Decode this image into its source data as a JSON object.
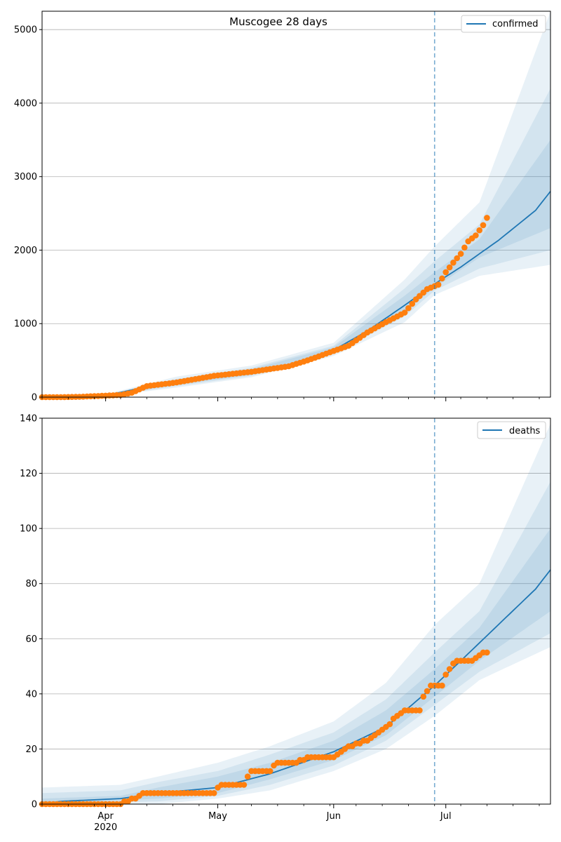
{
  "chart_data": [
    {
      "type": "line",
      "title": "Muscogee 28 days",
      "legend": {
        "label": "confirmed",
        "placement": "top-right"
      },
      "ylim": [
        0,
        5250
      ],
      "yticks": [
        0,
        1000,
        2000,
        3000,
        4000,
        5000
      ],
      "grid": "horizontal",
      "forecast_start": "2020-06-28",
      "series": [
        {
          "name": "confirmed",
          "kind": "model-median",
          "color": "#1f77b4",
          "points": [
            [
              "2020-03-15",
              0
            ],
            [
              "2020-04-01",
              20
            ],
            [
              "2020-04-10",
              120
            ],
            [
              "2020-04-20",
              200
            ],
            [
              "2020-05-01",
              290
            ],
            [
              "2020-05-10",
              340
            ],
            [
              "2020-05-20",
              410
            ],
            [
              "2020-06-01",
              640
            ],
            [
              "2020-06-10",
              900
            ],
            [
              "2020-06-20",
              1250
            ],
            [
              "2020-06-28",
              1540
            ],
            [
              "2020-07-05",
              1770
            ],
            [
              "2020-07-15",
              2130
            ],
            [
              "2020-07-25",
              2540
            ],
            [
              "2020-07-29",
              2800
            ]
          ],
          "bands": [
            {
              "lower": [
                [
                  "2020-03-15",
                  0
                ],
                [
                  "2020-04-01",
                  10
                ],
                [
                  "2020-04-20",
                  130
                ],
                [
                  "2020-05-10",
                  270
                ],
                [
                  "2020-06-01",
                  560
                ],
                [
                  "2020-06-20",
                  1020
                ],
                [
                  "2020-06-28",
                  1390
                ],
                [
                  "2020-07-10",
                  1650
                ],
                [
                  "2020-07-29",
                  1800
                ]
              ],
              "upper": [
                [
                  "2020-03-15",
                  10
                ],
                [
                  "2020-04-01",
                  40
                ],
                [
                  "2020-04-20",
                  280
                ],
                [
                  "2020-05-10",
                  430
                ],
                [
                  "2020-06-01",
                  740
                ],
                [
                  "2020-06-20",
                  1600
                ],
                [
                  "2020-06-28",
                  2050
                ],
                [
                  "2020-07-10",
                  2650
                ],
                [
                  "2020-07-29",
                  5250
                ]
              ]
            },
            {
              "lower": [
                [
                  "2020-03-15",
                  0
                ],
                [
                  "2020-04-01",
                  12
                ],
                [
                  "2020-04-20",
                  150
                ],
                [
                  "2020-05-10",
                  290
                ],
                [
                  "2020-06-01",
                  590
                ],
                [
                  "2020-06-20",
                  1100
                ],
                [
                  "2020-06-28",
                  1450
                ],
                [
                  "2020-07-10",
                  1750
                ],
                [
                  "2020-07-29",
                  2000
                ]
              ],
              "upper": [
                [
                  "2020-03-15",
                  8
                ],
                [
                  "2020-04-01",
                  35
                ],
                [
                  "2020-04-20",
                  250
                ],
                [
                  "2020-05-10",
                  400
                ],
                [
                  "2020-06-01",
                  700
                ],
                [
                  "2020-06-20",
                  1480
                ],
                [
                  "2020-06-28",
                  1850
                ],
                [
                  "2020-07-10",
                  2350
                ],
                [
                  "2020-07-29",
                  4200
                ]
              ]
            },
            {
              "lower": [
                [
                  "2020-03-15",
                  0
                ],
                [
                  "2020-04-01",
                  15
                ],
                [
                  "2020-04-20",
                  170
                ],
                [
                  "2020-05-10",
                  305
                ],
                [
                  "2020-06-01",
                  610
                ],
                [
                  "2020-06-20",
                  1160
                ],
                [
                  "2020-06-28",
                  1490
                ],
                [
                  "2020-07-10",
                  1900
                ],
                [
                  "2020-07-29",
                  2300
                ]
              ],
              "upper": [
                [
                  "2020-03-15",
                  6
                ],
                [
                  "2020-04-01",
                  30
                ],
                [
                  "2020-04-20",
                  230
                ],
                [
                  "2020-05-10",
                  380
                ],
                [
                  "2020-06-01",
                  680
                ],
                [
                  "2020-06-20",
                  1380
                ],
                [
                  "2020-06-28",
                  1700
                ],
                [
                  "2020-07-10",
                  2150
                ],
                [
                  "2020-07-29",
                  3500
                ]
              ]
            }
          ]
        },
        {
          "name": "observed",
          "kind": "observed",
          "color": "#ff7f0e",
          "points": [
            [
              "2020-03-15",
              0
            ],
            [
              "2020-03-20",
              0
            ],
            [
              "2020-03-25",
              5
            ],
            [
              "2020-04-01",
              20
            ],
            [
              "2020-04-05",
              30
            ],
            [
              "2020-04-08",
              60
            ],
            [
              "2020-04-12",
              150
            ],
            [
              "2020-04-20",
              200
            ],
            [
              "2020-04-30",
              290
            ],
            [
              "2020-05-10",
              345
            ],
            [
              "2020-05-20",
              420
            ],
            [
              "2020-05-25",
              500
            ],
            [
              "2020-05-31",
              610
            ],
            [
              "2020-06-05",
              700
            ],
            [
              "2020-06-10",
              880
            ],
            [
              "2020-06-15",
              1020
            ],
            [
              "2020-06-20",
              1150
            ],
            [
              "2020-06-23",
              1330
            ],
            [
              "2020-06-26",
              1470
            ],
            [
              "2020-06-29",
              1530
            ],
            [
              "2020-07-01",
              1700
            ],
            [
              "2020-07-03",
              1830
            ],
            [
              "2020-07-05",
              1950
            ],
            [
              "2020-07-07",
              2120
            ],
            [
              "2020-07-09",
              2200
            ],
            [
              "2020-07-11",
              2340
            ],
            [
              "2020-07-12",
              2440
            ]
          ]
        }
      ]
    },
    {
      "type": "line",
      "title": "",
      "legend": {
        "label": "deaths",
        "placement": "top-right"
      },
      "ylim": [
        0,
        140
      ],
      "yticks": [
        0,
        20,
        40,
        60,
        80,
        100,
        120,
        140
      ],
      "grid": "horizontal",
      "forecast_start": "2020-06-28",
      "series": [
        {
          "name": "deaths",
          "kind": "model-median",
          "color": "#1f77b4",
          "points": [
            [
              "2020-03-15",
              0
            ],
            [
              "2020-03-20",
              1
            ],
            [
              "2020-04-05",
              2
            ],
            [
              "2020-04-15",
              4
            ],
            [
              "2020-05-01",
              6
            ],
            [
              "2020-05-15",
              11
            ],
            [
              "2020-06-01",
              19
            ],
            [
              "2020-06-15",
              28
            ],
            [
              "2020-06-28",
              43
            ],
            [
              "2020-07-05",
              52
            ],
            [
              "2020-07-15",
              65
            ],
            [
              "2020-07-25",
              78
            ],
            [
              "2020-07-29",
              85
            ]
          ],
          "bands": [
            {
              "lower": [
                [
                  "2020-03-15",
                  0
                ],
                [
                  "2020-04-15",
                  0
                ],
                [
                  "2020-05-01",
                  2
                ],
                [
                  "2020-05-15",
                  5
                ],
                [
                  "2020-06-01",
                  12
                ],
                [
                  "2020-06-15",
                  20
                ],
                [
                  "2020-06-28",
                  32
                ],
                [
                  "2020-07-10",
                  45
                ],
                [
                  "2020-07-29",
                  57
                ]
              ],
              "upper": [
                [
                  "2020-03-15",
                  6
                ],
                [
                  "2020-04-05",
                  7
                ],
                [
                  "2020-04-15",
                  10
                ],
                [
                  "2020-05-01",
                  15
                ],
                [
                  "2020-05-15",
                  21
                ],
                [
                  "2020-06-01",
                  30
                ],
                [
                  "2020-06-15",
                  44
                ],
                [
                  "2020-06-28",
                  65
                ],
                [
                  "2020-07-10",
                  80
                ],
                [
                  "2020-07-29",
                  138
                ]
              ]
            },
            {
              "lower": [
                [
                  "2020-03-15",
                  0
                ],
                [
                  "2020-04-15",
                  1
                ],
                [
                  "2020-05-01",
                  3
                ],
                [
                  "2020-05-15",
                  7
                ],
                [
                  "2020-06-01",
                  14
                ],
                [
                  "2020-06-15",
                  23
                ],
                [
                  "2020-06-28",
                  36
                ],
                [
                  "2020-07-10",
                  48
                ],
                [
                  "2020-07-29",
                  62
                ]
              ],
              "upper": [
                [
                  "2020-03-15",
                  4
                ],
                [
                  "2020-04-05",
                  5
                ],
                [
                  "2020-04-15",
                  8
                ],
                [
                  "2020-05-01",
                  12
                ],
                [
                  "2020-05-15",
                  18
                ],
                [
                  "2020-06-01",
                  26
                ],
                [
                  "2020-06-15",
                  38
                ],
                [
                  "2020-06-28",
                  55
                ],
                [
                  "2020-07-10",
                  70
                ],
                [
                  "2020-07-29",
                  117
                ]
              ]
            },
            {
              "lower": [
                [
                  "2020-03-15",
                  0
                ],
                [
                  "2020-04-15",
                  2
                ],
                [
                  "2020-05-01",
                  4
                ],
                [
                  "2020-05-15",
                  9
                ],
                [
                  "2020-06-01",
                  16
                ],
                [
                  "2020-06-15",
                  25
                ],
                [
                  "2020-06-28",
                  39
                ],
                [
                  "2020-07-10",
                  52
                ],
                [
                  "2020-07-29",
                  70
                ]
              ],
              "upper": [
                [
                  "2020-03-15",
                  2
                ],
                [
                  "2020-04-05",
                  3
                ],
                [
                  "2020-04-15",
                  6
                ],
                [
                  "2020-05-01",
                  10
                ],
                [
                  "2020-05-15",
                  15
                ],
                [
                  "2020-06-01",
                  23
                ],
                [
                  "2020-06-15",
                  34
                ],
                [
                  "2020-06-28",
                  49
                ],
                [
                  "2020-07-10",
                  64
                ],
                [
                  "2020-07-29",
                  100
                ]
              ]
            }
          ]
        },
        {
          "name": "observed",
          "kind": "observed",
          "color": "#ff7f0e",
          "points": [
            [
              "2020-03-15",
              0
            ],
            [
              "2020-03-25",
              0
            ],
            [
              "2020-04-05",
              0
            ],
            [
              "2020-04-07",
              1
            ],
            [
              "2020-04-10",
              3
            ],
            [
              "2020-04-12",
              4
            ],
            [
              "2020-04-25",
              4
            ],
            [
              "2020-04-30",
              4
            ],
            [
              "2020-05-01",
              6
            ],
            [
              "2020-05-02",
              7
            ],
            [
              "2020-05-08",
              7
            ],
            [
              "2020-05-10",
              12
            ],
            [
              "2020-05-15",
              12
            ],
            [
              "2020-05-17",
              15
            ],
            [
              "2020-05-22",
              15
            ],
            [
              "2020-05-25",
              17
            ],
            [
              "2020-06-01",
              17
            ],
            [
              "2020-06-02",
              18
            ],
            [
              "2020-06-05",
              21
            ],
            [
              "2020-06-10",
              23
            ],
            [
              "2020-06-12",
              25
            ],
            [
              "2020-06-15",
              28
            ],
            [
              "2020-06-18",
              32
            ],
            [
              "2020-06-20",
              34
            ],
            [
              "2020-06-24",
              34
            ],
            [
              "2020-06-25",
              39
            ],
            [
              "2020-06-27",
              43
            ],
            [
              "2020-06-30",
              43
            ],
            [
              "2020-07-01",
              47
            ],
            [
              "2020-07-02",
              49
            ],
            [
              "2020-07-03",
              51
            ],
            [
              "2020-07-05",
              52
            ],
            [
              "2020-07-08",
              52
            ],
            [
              "2020-07-10",
              54
            ],
            [
              "2020-07-12",
              55
            ]
          ]
        }
      ]
    }
  ],
  "x_axis": {
    "range": [
      "2020-03-15",
      "2020-07-29"
    ],
    "month_ticks": [
      {
        "date": "2020-04-01",
        "label": "Apr"
      },
      {
        "date": "2020-05-01",
        "label": "May"
      },
      {
        "date": "2020-06-01",
        "label": "Jun"
      },
      {
        "date": "2020-07-01",
        "label": "Jul"
      }
    ],
    "year_label": {
      "date": "2020-04-01",
      "label": "2020"
    }
  }
}
